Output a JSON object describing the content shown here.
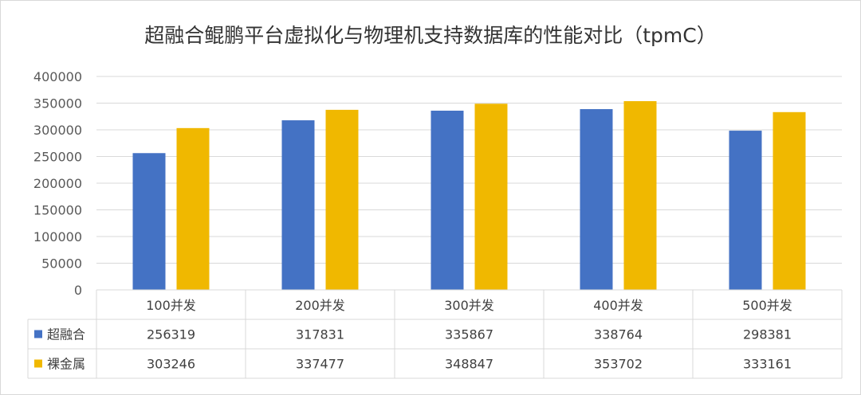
{
  "chart_data": {
    "type": "bar",
    "title": "超融合鲲鹏平台虚拟化与物理机支持数据库的性能对比（tpmC）",
    "categories": [
      "100并发",
      "200并发",
      "300并发",
      "400并发",
      "500并发"
    ],
    "series": [
      {
        "name": "超融合",
        "color": "#4472c4",
        "values": [
          256319,
          317831,
          335867,
          338764,
          298381
        ]
      },
      {
        "name": "裸金属",
        "color": "#f0b800",
        "values": [
          303246,
          337477,
          348847,
          353702,
          333161
        ]
      }
    ],
    "ylim": [
      0,
      400000
    ],
    "yticks": [
      0,
      50000,
      100000,
      150000,
      200000,
      250000,
      300000,
      350000,
      400000
    ],
    "ytick_labels": [
      "0",
      "50000",
      "100000",
      "150000",
      "200000",
      "250000",
      "300000",
      "350000",
      "400000"
    ],
    "grid": true,
    "data_table": true,
    "legend": "data-table"
  }
}
